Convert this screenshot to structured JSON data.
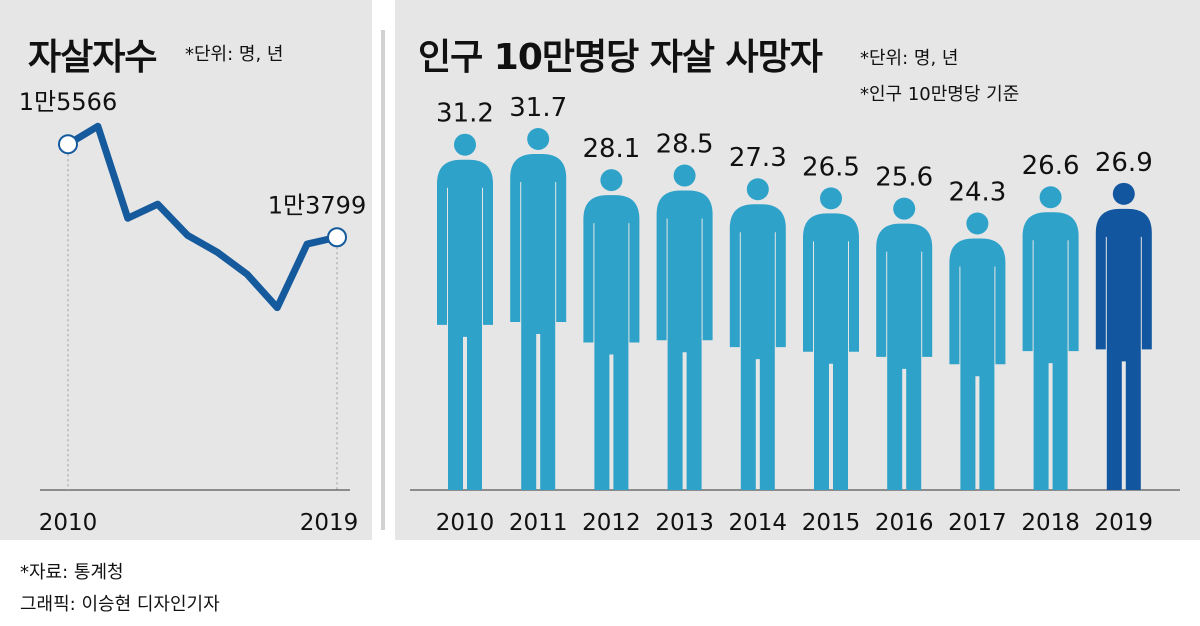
{
  "left": {
    "title": "자살자수",
    "unit": "*단위: 명, 년"
  },
  "right": {
    "title": "인구 10만명당 자살 사망자",
    "unit": "*단위: 명, 년",
    "note": "*인구 10만명당 기준"
  },
  "footer": {
    "source": "*자료: 통계청",
    "credit": "그래픽: 이승현 디자인기자"
  },
  "colors": {
    "line": "#155a9c",
    "figure": "#2fa2c9",
    "figure_highlight": "#1256a0",
    "panel_bg": "#e6e6e6"
  },
  "chart_data": [
    {
      "type": "line",
      "title": "자살자수",
      "x": [
        2010,
        2011,
        2012,
        2013,
        2014,
        2015,
        2016,
        2017,
        2018,
        2019
      ],
      "values": [
        15566,
        15906,
        14160,
        14427,
        13836,
        13513,
        13092,
        12463,
        13670,
        13799
      ],
      "value_labels": {
        "2010": "1만5566",
        "2019": "1만3799"
      },
      "x_tick_labels": [
        "2010",
        "2019"
      ],
      "ylim": [
        9000,
        16500
      ],
      "grid": false
    },
    {
      "type": "bar",
      "title": "인구 10만명당 자살 사망자",
      "categories": [
        "2010",
        "2011",
        "2012",
        "2013",
        "2014",
        "2015",
        "2016",
        "2017",
        "2018",
        "2019"
      ],
      "values": [
        31.2,
        31.7,
        28.1,
        28.5,
        27.3,
        26.5,
        25.6,
        24.3,
        26.6,
        26.9
      ],
      "value_labels": [
        "31.2",
        "31.7",
        "28.1",
        "28.5",
        "27.3",
        "26.5",
        "25.6",
        "24.3",
        "26.6",
        "26.9"
      ],
      "highlight": "2019",
      "mark": "person-icon",
      "ylim": [
        0,
        31.7
      ]
    }
  ]
}
